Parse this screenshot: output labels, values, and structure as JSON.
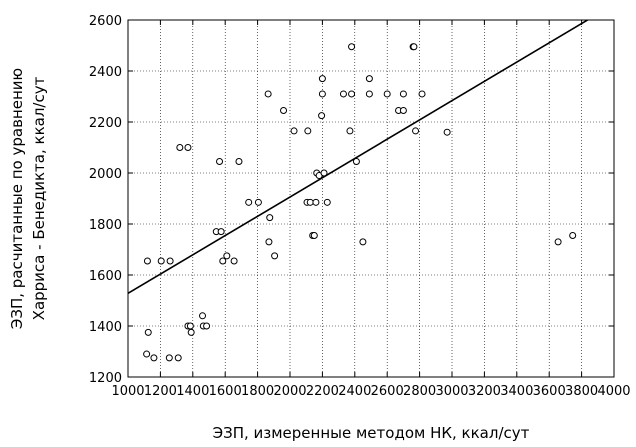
{
  "chart_data": {
    "type": "scatter",
    "title": "",
    "xlabel": "ЭЗП, измеренные методом НК, ккал/сут",
    "ylabel": [
      "ЭЗП, расчитанные по уравнению",
      "Харриса - Бенедикта, ккал/сут"
    ],
    "xlim": [
      1000,
      4000
    ],
    "ylim": [
      1200,
      2600
    ],
    "x_ticks": [
      1000,
      1200,
      1400,
      1600,
      1800,
      2000,
      2200,
      2400,
      2600,
      2800,
      3000,
      3200,
      3400,
      3600,
      3800,
      4000
    ],
    "y_ticks": [
      1200,
      1400,
      1600,
      1800,
      2000,
      2200,
      2400,
      2600
    ],
    "grid": true,
    "regression_line": {
      "x": [
        1000,
        3850
      ],
      "y": [
        1528,
        2605
      ]
    },
    "points": [
      {
        "x": 1115,
        "y": 1290
      },
      {
        "x": 1125,
        "y": 1375
      },
      {
        "x": 1120,
        "y": 1655
      },
      {
        "x": 1160,
        "y": 1275
      },
      {
        "x": 1205,
        "y": 1655
      },
      {
        "x": 1260,
        "y": 1655
      },
      {
        "x": 1255,
        "y": 1275
      },
      {
        "x": 1310,
        "y": 1275
      },
      {
        "x": 1320,
        "y": 2100
      },
      {
        "x": 1370,
        "y": 2100
      },
      {
        "x": 1370,
        "y": 1400
      },
      {
        "x": 1385,
        "y": 1400
      },
      {
        "x": 1390,
        "y": 1375
      },
      {
        "x": 1460,
        "y": 1440
      },
      {
        "x": 1465,
        "y": 1400
      },
      {
        "x": 1485,
        "y": 1400
      },
      {
        "x": 1545,
        "y": 1770
      },
      {
        "x": 1565,
        "y": 2045
      },
      {
        "x": 1575,
        "y": 1770
      },
      {
        "x": 1585,
        "y": 1655
      },
      {
        "x": 1610,
        "y": 1675
      },
      {
        "x": 1655,
        "y": 1655
      },
      {
        "x": 1685,
        "y": 2045
      },
      {
        "x": 1745,
        "y": 1885
      },
      {
        "x": 1805,
        "y": 1885
      },
      {
        "x": 1865,
        "y": 2310
      },
      {
        "x": 1870,
        "y": 1730
      },
      {
        "x": 1875,
        "y": 1825
      },
      {
        "x": 1905,
        "y": 1675
      },
      {
        "x": 1960,
        "y": 2245
      },
      {
        "x": 2025,
        "y": 2165
      },
      {
        "x": 2105,
        "y": 1885
      },
      {
        "x": 2110,
        "y": 2165
      },
      {
        "x": 2125,
        "y": 1885
      },
      {
        "x": 2140,
        "y": 1755
      },
      {
        "x": 2150,
        "y": 1755
      },
      {
        "x": 2160,
        "y": 1885
      },
      {
        "x": 2165,
        "y": 2000
      },
      {
        "x": 2180,
        "y": 1990
      },
      {
        "x": 2195,
        "y": 2225
      },
      {
        "x": 2200,
        "y": 2370
      },
      {
        "x": 2200,
        "y": 2310
      },
      {
        "x": 2210,
        "y": 2000
      },
      {
        "x": 2230,
        "y": 1885
      },
      {
        "x": 2330,
        "y": 2310
      },
      {
        "x": 2370,
        "y": 2165
      },
      {
        "x": 2380,
        "y": 2495
      },
      {
        "x": 2380,
        "y": 2310
      },
      {
        "x": 2410,
        "y": 2045
      },
      {
        "x": 2450,
        "y": 1730
      },
      {
        "x": 2490,
        "y": 2370
      },
      {
        "x": 2490,
        "y": 2310
      },
      {
        "x": 2600,
        "y": 2310
      },
      {
        "x": 2670,
        "y": 2245
      },
      {
        "x": 2700,
        "y": 2310
      },
      {
        "x": 2700,
        "y": 2245
      },
      {
        "x": 2760,
        "y": 2495
      },
      {
        "x": 2765,
        "y": 2495
      },
      {
        "x": 2775,
        "y": 2165
      },
      {
        "x": 2815,
        "y": 2310
      },
      {
        "x": 2970,
        "y": 2160
      },
      {
        "x": 3655,
        "y": 1730
      },
      {
        "x": 3745,
        "y": 1755
      }
    ]
  }
}
